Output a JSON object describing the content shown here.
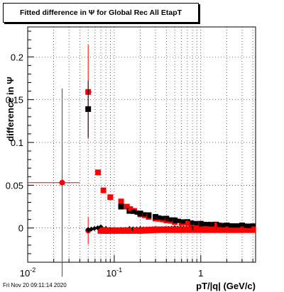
{
  "chart_data": {
    "type": "scatter",
    "title": "Fitted difference in Ψ  for Global Rec All EtapT",
    "xlabel": "pT/|q| (GeV/c)",
    "ylabel": "difference in  Ψ",
    "xscale": "log",
    "xlim": [
      0.01,
      4.3
    ],
    "ylim": [
      -0.04,
      0.235
    ],
    "x_ticks": [
      "10^-2",
      "10^-1",
      "1"
    ],
    "y_ticks": [
      "0",
      "0.05",
      "0.1",
      "0.15",
      "0.2"
    ],
    "grid": true,
    "legend": "none",
    "series": [
      {
        "color": "#ff0000",
        "marker": "square",
        "points": [
          {
            "x": 0.05,
            "y": 0.159,
            "yerr": 0.055,
            "xerr": [
              0.046,
              0.055
            ]
          },
          {
            "x": 0.065,
            "y": 0.065
          },
          {
            "x": 0.075,
            "y": 0.044
          },
          {
            "x": 0.09,
            "y": 0.036
          },
          {
            "x": 0.12,
            "y": 0.031
          },
          {
            "x": 0.14,
            "y": 0.025
          },
          {
            "x": 0.17,
            "y": 0.02
          },
          {
            "x": 0.2,
            "y": 0.016
          },
          {
            "x": 0.25,
            "y": 0.013
          },
          {
            "x": 0.3,
            "y": 0.011
          },
          {
            "x": 0.4,
            "y": 0.009
          },
          {
            "x": 0.5,
            "y": 0.007
          },
          {
            "x": 0.6,
            "y": 0.006
          },
          {
            "x": 0.8,
            "y": 0.005
          },
          {
            "x": 1.0,
            "y": 0.004
          },
          {
            "x": 1.3,
            "y": 0.004
          },
          {
            "x": 1.6,
            "y": 0.003
          },
          {
            "x": 2.0,
            "y": 0.003
          },
          {
            "x": 2.5,
            "y": 0.002
          },
          {
            "x": 3.0,
            "y": 0.002
          },
          {
            "x": 3.5,
            "y": 0.002
          },
          {
            "x": 4.0,
            "y": 0.002
          }
        ]
      },
      {
        "color": "#000000",
        "marker": "square",
        "points": [
          {
            "x": 0.05,
            "y": 0.139,
            "yerr": 0.033
          },
          {
            "x": 0.12,
            "y": 0.025
          },
          {
            "x": 0.15,
            "y": 0.02
          },
          {
            "x": 0.2,
            "y": 0.017
          },
          {
            "x": 0.25,
            "y": 0.015
          },
          {
            "x": 0.3,
            "y": 0.013
          },
          {
            "x": 0.4,
            "y": 0.011
          },
          {
            "x": 0.5,
            "y": 0.009
          },
          {
            "x": 0.7,
            "y": 0.007
          },
          {
            "x": 1.0,
            "y": 0.005
          },
          {
            "x": 1.5,
            "y": 0.004
          },
          {
            "x": 2.0,
            "y": 0.003
          },
          {
            "x": 3.0,
            "y": 0.003
          },
          {
            "x": 4.0,
            "y": 0.002
          }
        ]
      },
      {
        "color": "#ff0000",
        "marker": "circle",
        "points": [
          {
            "x": 0.025,
            "y": 0.053,
            "yerr": 0.11,
            "xerr": [
              0.01,
              0.04
            ]
          },
          {
            "x": 0.05,
            "y": -0.003,
            "yerr": 0.016
          }
        ]
      },
      {
        "color": "#000000",
        "marker": "diamond",
        "points": [
          {
            "x": 0.05,
            "y": -0.002
          },
          {
            "x": 0.07,
            "y": 0.001
          },
          {
            "x": 0.08,
            "y": -0.001
          },
          {
            "x": 0.1,
            "y": -0.002
          },
          {
            "x": 0.12,
            "y": -0.002
          },
          {
            "x": 0.15,
            "y": -0.001
          },
          {
            "x": 0.2,
            "y": -0.001
          },
          {
            "x": 0.3,
            "y": -0.001
          },
          {
            "x": 0.5,
            "y": 0.0
          },
          {
            "x": 1.0,
            "y": 0.0
          },
          {
            "x": 2.0,
            "y": 0.0
          },
          {
            "x": 4.0,
            "y": 0.0
          }
        ]
      },
      {
        "color": "#ff0000",
        "marker": "square-dense",
        "points": [
          {
            "x": 0.07,
            "y": -0.003
          },
          {
            "x": 0.09,
            "y": -0.003
          },
          {
            "x": 0.12,
            "y": -0.003
          },
          {
            "x": 0.16,
            "y": -0.003
          },
          {
            "x": 0.2,
            "y": -0.003
          },
          {
            "x": 0.3,
            "y": -0.002
          },
          {
            "x": 0.4,
            "y": -0.002
          },
          {
            "x": 0.6,
            "y": -0.002
          },
          {
            "x": 0.8,
            "y": -0.002
          },
          {
            "x": 1.0,
            "y": -0.002
          },
          {
            "x": 1.5,
            "y": -0.002
          },
          {
            "x": 2.0,
            "y": -0.002
          },
          {
            "x": 3.0,
            "y": -0.002
          },
          {
            "x": 4.0,
            "y": -0.002
          }
        ]
      }
    ]
  },
  "footer": {
    "timestamp": "Fri Nov 20 09:11:14 2020"
  }
}
